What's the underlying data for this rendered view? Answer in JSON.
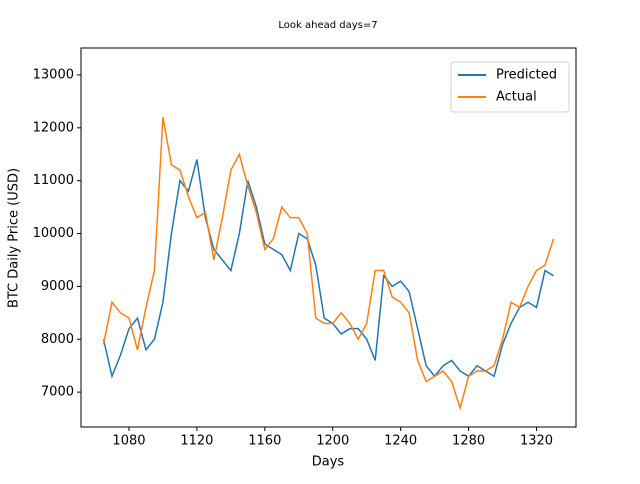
{
  "chart_data": {
    "type": "line",
    "title": "Look ahead days=7",
    "x_label": "Days",
    "y_label": "BTC Daily Price (USD)",
    "x": [
      1065,
      1070,
      1075,
      1080,
      1085,
      1090,
      1095,
      1100,
      1105,
      1110,
      1115,
      1120,
      1125,
      1130,
      1135,
      1140,
      1145,
      1150,
      1155,
      1160,
      1165,
      1170,
      1175,
      1180,
      1185,
      1190,
      1195,
      1200,
      1205,
      1210,
      1215,
      1220,
      1225,
      1230,
      1235,
      1240,
      1245,
      1250,
      1255,
      1260,
      1265,
      1270,
      1275,
      1280,
      1285,
      1290,
      1295,
      1300,
      1305,
      1310,
      1315,
      1320,
      1325,
      1330
    ],
    "series": [
      {
        "name": "Predicted",
        "color": "#1f77b4",
        "values": [
          8000,
          7300,
          7700,
          8200,
          8400,
          7800,
          8000,
          8700,
          10000,
          11000,
          10800,
          11400,
          10300,
          9700,
          9500,
          9300,
          10000,
          11000,
          10500,
          9800,
          9700,
          9600,
          9300,
          10000,
          9900,
          9400,
          8400,
          8300,
          8100,
          8200,
          8200,
          8000,
          7600,
          9200,
          9000,
          9100,
          8900,
          8200,
          7500,
          7300,
          7500,
          7600,
          7400,
          7300,
          7500,
          7400,
          7300,
          7900,
          8300,
          8600,
          8700,
          8600,
          9300,
          9200
        ]
      },
      {
        "name": "Actual",
        "color": "#ff7f0e",
        "values": [
          7900,
          8700,
          8500,
          8400,
          7800,
          8600,
          9300,
          12200,
          11300,
          11200,
          10700,
          10300,
          10400,
          9500,
          10300,
          11200,
          11500,
          10900,
          10400,
          9700,
          9900,
          10500,
          10300,
          10300,
          10000,
          8400,
          8300,
          8300,
          8500,
          8300,
          8000,
          8300,
          9300,
          9300,
          8800,
          8700,
          8500,
          7600,
          7200,
          7300,
          7400,
          7200,
          6700,
          7300,
          7400,
          7400,
          7500,
          8000,
          8700,
          8600,
          9000,
          9300,
          9400,
          9900
        ]
      }
    ],
    "xlim": [
      1051.75,
      1343.25
    ],
    "xticks": [
      1080,
      1120,
      1160,
      1200,
      1240,
      1280,
      1320
    ],
    "ylim": [
      6340,
      13510
    ],
    "yticks": [
      7000,
      8000,
      9000,
      10000,
      11000,
      12000,
      13000
    ],
    "grid": false,
    "legend": "upper right"
  }
}
